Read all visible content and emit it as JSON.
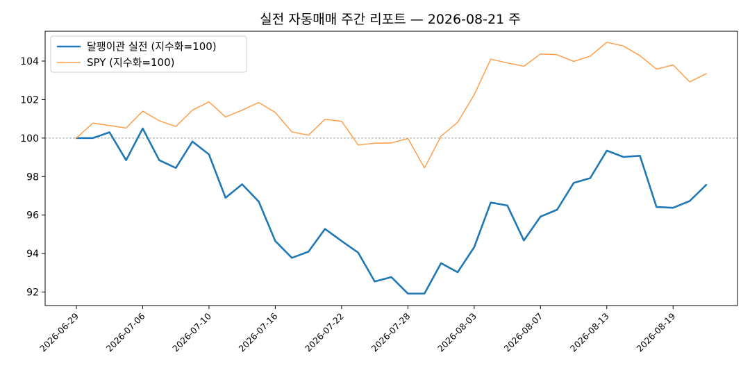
{
  "chart_data": {
    "type": "line",
    "title": "실전 자동매매 주간 리포트 — 2026-08-21 주",
    "xlabel": "",
    "ylabel": "",
    "ylim": [
      91.3,
      105.55
    ],
    "y_ticks": [
      92,
      94,
      96,
      98,
      100,
      102,
      104
    ],
    "x_tick_labels": [
      "2026-06-29",
      "2026-07-06",
      "2026-07-10",
      "2026-07-16",
      "2026-07-22",
      "2026-07-28",
      "2026-08-03",
      "2026-08-07",
      "2026-08-13",
      "2026-08-19"
    ],
    "x_tick_positions": [
      0,
      4,
      8,
      12,
      16,
      20,
      24,
      28,
      32,
      36
    ],
    "baseline": 100,
    "grid": false,
    "legend_position": "top-left",
    "series": [
      {
        "name": "달팽이관 실전 (지수화=100)",
        "color": "#1f77b4",
        "values": [
          100.0,
          100.0,
          100.3,
          98.85,
          100.5,
          98.85,
          98.45,
          99.82,
          99.15,
          96.9,
          97.6,
          96.7,
          94.65,
          93.78,
          94.1,
          95.28,
          94.65,
          94.05,
          92.55,
          92.78,
          91.92,
          91.92,
          93.5,
          93.03,
          94.33,
          96.65,
          96.5,
          94.68,
          95.92,
          96.28,
          97.67,
          97.92,
          99.35,
          99.02,
          99.08,
          96.42,
          96.38,
          96.73,
          97.57
        ]
      },
      {
        "name": "SPY (지수화=100)",
        "color": "#ff9e4a",
        "values": [
          100.0,
          100.78,
          100.65,
          100.52,
          101.4,
          100.9,
          100.6,
          101.45,
          101.88,
          101.1,
          101.45,
          101.85,
          101.33,
          100.32,
          100.15,
          100.98,
          100.87,
          99.64,
          99.73,
          99.75,
          99.98,
          98.45,
          100.1,
          100.82,
          102.25,
          104.1,
          103.9,
          103.73,
          104.37,
          104.33,
          103.98,
          104.26,
          104.98,
          104.78,
          104.28,
          103.58,
          103.8,
          102.92,
          103.35
        ]
      }
    ]
  }
}
